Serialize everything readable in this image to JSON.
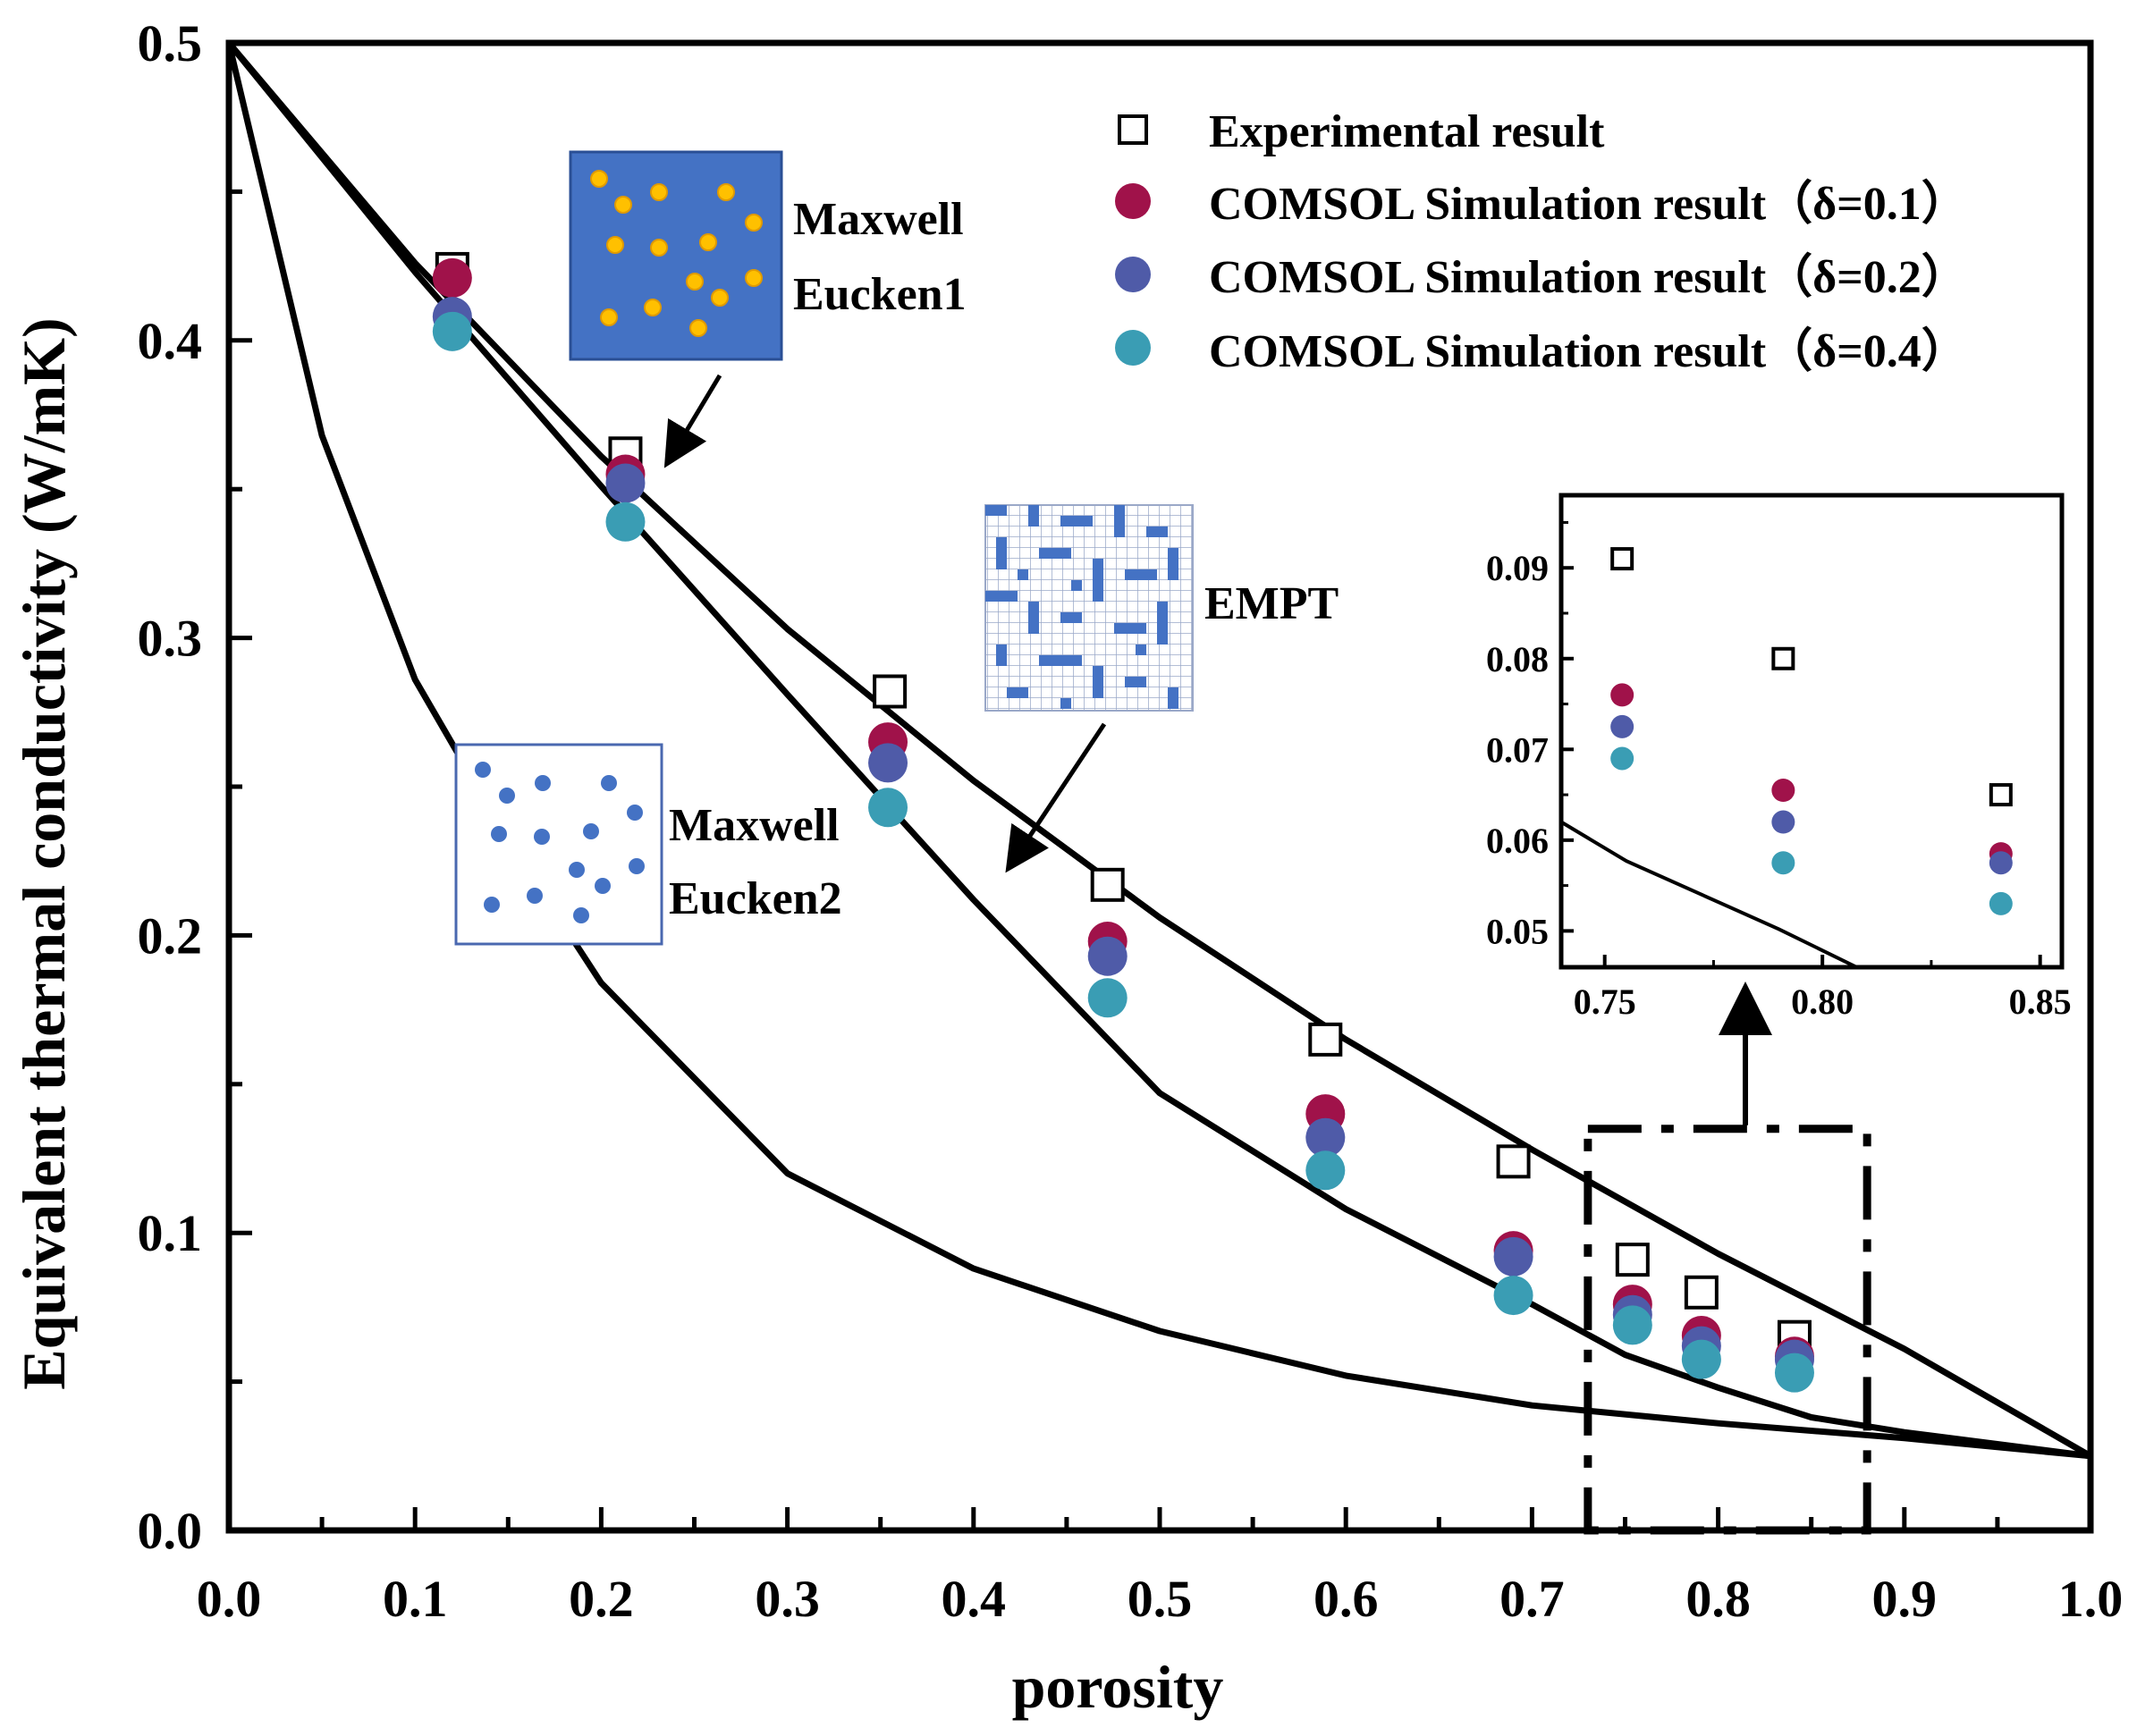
{
  "chart_data": {
    "type": "scatter",
    "xlabel": "porosity",
    "ylabel": "Equivalent thermal conductivity (W/mK)",
    "xlim": [
      0.0,
      1.0
    ],
    "ylim": [
      0.0,
      0.5
    ],
    "x_ticks": [
      "0.0",
      "0.1",
      "0.2",
      "0.3",
      "0.4",
      "0.5",
      "0.6",
      "0.7",
      "0.8",
      "0.9",
      "1.0"
    ],
    "y_ticks": [
      "0.0",
      "0.1",
      "0.2",
      "0.3",
      "0.4",
      "0.5"
    ],
    "legend_position": "top-right",
    "series": [
      {
        "name": "Experimental result",
        "marker": "open-square",
        "color": "#000000",
        "x": [
          0.12,
          0.213,
          0.355,
          0.472,
          0.589,
          0.69,
          0.754,
          0.791,
          0.841
        ],
        "y": [
          0.424,
          0.362,
          0.282,
          0.217,
          0.165,
          0.124,
          0.091,
          0.08,
          0.065
        ]
      },
      {
        "name": "COMSOL Simulation result（δ=0.1）",
        "marker": "filled-circle",
        "color": "#A0124A",
        "x": [
          0.12,
          0.213,
          0.354,
          0.472,
          0.589,
          0.69,
          0.754,
          0.791,
          0.841
        ],
        "y": [
          0.421,
          0.355,
          0.265,
          0.198,
          0.14,
          0.094,
          0.076,
          0.0655,
          0.0585
        ]
      },
      {
        "name": "COMSOL Simulation result（δ=0.2）",
        "marker": "filled-circle",
        "color": "#4F5BA8",
        "x": [
          0.12,
          0.213,
          0.354,
          0.472,
          0.589,
          0.69,
          0.754,
          0.791,
          0.841
        ],
        "y": [
          0.408,
          0.352,
          0.258,
          0.193,
          0.132,
          0.092,
          0.0725,
          0.062,
          0.0575
        ]
      },
      {
        "name": "COMSOL Simulation result（δ=0.4）",
        "marker": "filled-circle",
        "color": "#3A9DB4",
        "x": [
          0.12,
          0.213,
          0.354,
          0.472,
          0.589,
          0.69,
          0.754,
          0.791,
          0.841
        ],
        "y": [
          0.403,
          0.339,
          0.243,
          0.179,
          0.121,
          0.079,
          0.069,
          0.0575,
          0.053
        ]
      }
    ],
    "model_curves": [
      {
        "name": "Maxwell Eucken1",
        "x": [
          0.0,
          0.1,
          0.2,
          0.3,
          0.4,
          0.5,
          0.6,
          0.7,
          0.8,
          0.9,
          1.0
        ],
        "y": [
          0.5,
          0.426,
          0.361,
          0.303,
          0.252,
          0.206,
          0.165,
          0.128,
          0.093,
          0.061,
          0.025
        ]
      },
      {
        "name": "EMPT",
        "x": [
          0.0,
          0.1,
          0.2,
          0.3,
          0.4,
          0.5,
          0.6,
          0.7,
          0.75,
          0.8,
          0.85,
          0.9,
          1.0
        ],
        "y": [
          0.5,
          0.423,
          0.351,
          0.281,
          0.212,
          0.147,
          0.108,
          0.076,
          0.059,
          0.048,
          0.038,
          0.033,
          0.025
        ]
      },
      {
        "name": "Maxwell Eucken2",
        "x": [
          0.0,
          0.05,
          0.1,
          0.15,
          0.2,
          0.3,
          0.4,
          0.5,
          0.6,
          0.7,
          0.8,
          0.9,
          1.0
        ],
        "y": [
          0.5,
          0.368,
          0.286,
          0.232,
          0.184,
          0.12,
          0.088,
          0.067,
          0.052,
          0.042,
          0.036,
          0.031,
          0.025
        ]
      }
    ],
    "annotations": {
      "me1_line1": "Maxwell",
      "me1_line2": "Eucken1",
      "empt": "EMPT",
      "me2_line1": "Maxwell",
      "me2_line2": "Eucken2"
    },
    "inset": {
      "xlim": [
        0.74,
        0.855
      ],
      "ylim": [
        0.046,
        0.098
      ],
      "x_ticks": [
        "0.75",
        "0.80",
        "0.85"
      ],
      "y_ticks": [
        "0.05",
        "0.06",
        "0.07",
        "0.08",
        "0.09"
      ],
      "zoom_box_x": [
        0.73,
        0.88
      ],
      "zoom_box_y": [
        0.0,
        0.135
      ]
    }
  }
}
